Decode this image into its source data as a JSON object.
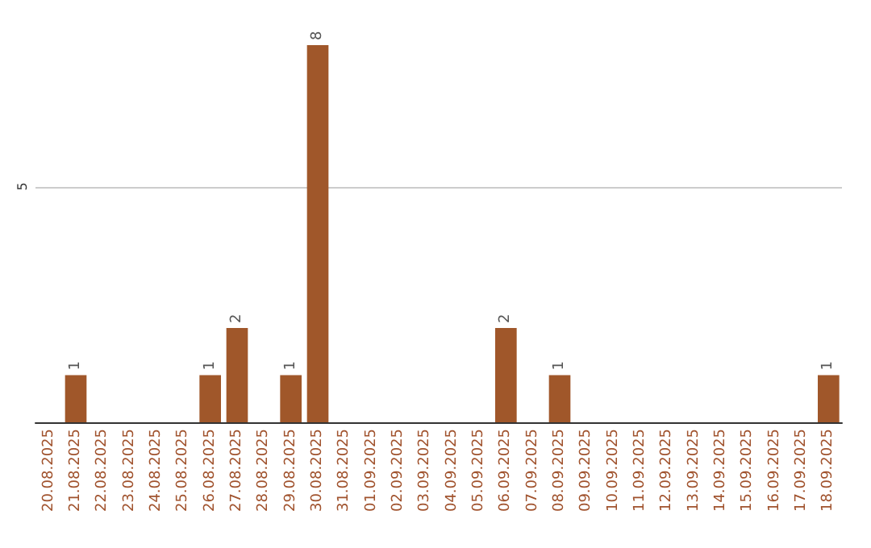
{
  "chart_data": {
    "type": "bar",
    "categories": [
      "20.08.2025",
      "21.08.2025",
      "22.08.2025",
      "23.08.2025",
      "24.08.2025",
      "25.08.2025",
      "26.08.2025",
      "27.08.2025",
      "28.08.2025",
      "29.08.2025",
      "30.08.2025",
      "31.08.2025",
      "01.09.2025",
      "02.09.2025",
      "03.09.2025",
      "04.09.2025",
      "05.09.2025",
      "06.09.2025",
      "07.09.2025",
      "08.09.2025",
      "09.09.2025",
      "10.09.2025",
      "11.09.2025",
      "12.09.2025",
      "13.09.2025",
      "14.09.2025",
      "15.09.2025",
      "16.09.2025",
      "17.09.2025",
      "18.09.2025"
    ],
    "values": [
      0,
      1,
      0,
      0,
      0,
      0,
      1,
      2,
      0,
      1,
      8,
      0,
      0,
      0,
      0,
      0,
      0,
      2,
      0,
      1,
      0,
      0,
      0,
      0,
      0,
      0,
      0,
      0,
      0,
      1
    ],
    "value_labels": [
      null,
      "1",
      null,
      null,
      null,
      null,
      "1",
      "2",
      null,
      "1",
      "8",
      null,
      null,
      null,
      null,
      null,
      null,
      "2",
      null,
      "1",
      null,
      null,
      null,
      null,
      null,
      null,
      null,
      null,
      null,
      "1"
    ],
    "color": "#a0572a",
    "ylim": [
      0,
      8
    ],
    "yticks": [
      5
    ],
    "grid": "y"
  }
}
